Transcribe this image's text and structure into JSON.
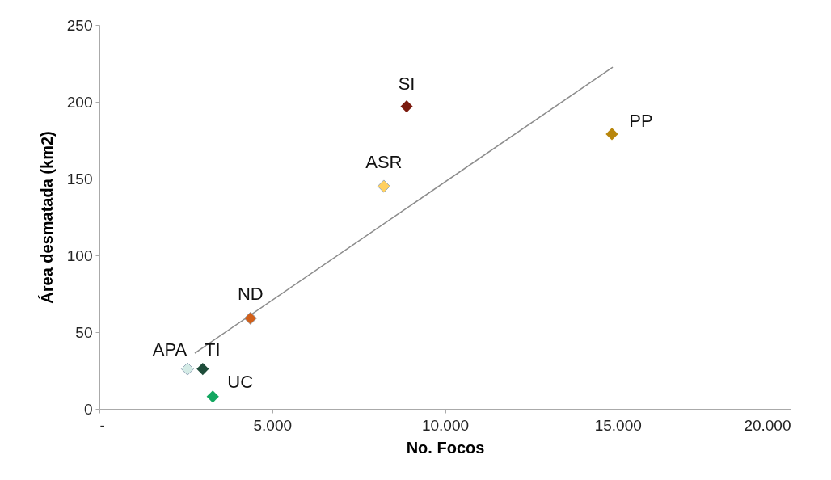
{
  "chart_data": {
    "type": "scatter",
    "xlabel": "No. Focos",
    "ylabel": "Área desmatada  (km2)",
    "marker": "diamond",
    "xlim": [
      0,
      20000
    ],
    "xticks": [
      {
        "value": 0,
        "label": "-"
      },
      {
        "value": 5000,
        "label": "5.000"
      },
      {
        "value": 10000,
        "label": "10.000"
      },
      {
        "value": 15000,
        "label": "15.000"
      },
      {
        "value": 20000,
        "label": "20.000"
      }
    ],
    "ylim": [
      0,
      250
    ],
    "yticks": [
      0,
      50,
      100,
      150,
      200,
      250
    ],
    "series": [
      {
        "type": "line",
        "marker": "none",
        "color": "#8c8c8c",
        "x": [
          2760,
          14854
        ],
        "values": [
          36.3,
          222.6
        ]
      },
      {
        "name": "SI",
        "color": "#7b1a0e",
        "x": [
          8890
        ],
        "values": [
          197
        ]
      },
      {
        "name": "PP",
        "color": "#b8860b",
        "x": [
          14830
        ],
        "values": [
          179
        ]
      },
      {
        "name": "ASR",
        "color": "#ffd060",
        "x": [
          8230
        ],
        "values": [
          145
        ]
      },
      {
        "name": "ND",
        "color": "#d2601a",
        "x": [
          4370
        ],
        "values": [
          59
        ]
      },
      {
        "name": "APA",
        "color": "#d4ebe6",
        "x": [
          2550
        ],
        "values": [
          26
        ]
      },
      {
        "name": "TI",
        "color": "#1e4d3a",
        "x": [
          2990
        ],
        "values": [
          26
        ]
      },
      {
        "name": "UC",
        "color": "#13a760",
        "x": [
          3280
        ],
        "values": [
          8
        ]
      }
    ]
  }
}
